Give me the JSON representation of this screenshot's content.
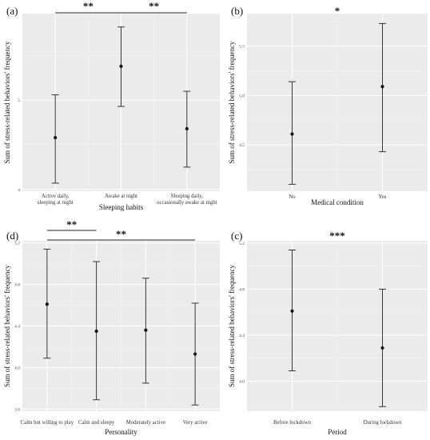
{
  "chart_data": [
    {
      "type": "errorbar",
      "panel_label": "(a)",
      "xlabel": "Sleeping habits",
      "ylabel": "Sum of stress-related behaviors' frequency",
      "categories": [
        "Active daily,\nsleeping at night",
        "Awake at night",
        "Sleeping daily,\noccasionally awake at night"
      ],
      "mean": [
        4.58,
        5.38,
        4.68
      ],
      "lower": [
        4.07,
        4.93,
        4.25
      ],
      "upper": [
        5.06,
        5.82,
        5.1
      ],
      "ylim": [
        3.98,
        5.97
      ],
      "yticks": [
        4,
        5
      ],
      "ytick_labels": [
        "4",
        "5"
      ],
      "show_minor_y": true,
      "significance": [
        {
          "from": 0,
          "to": 1,
          "label": "**"
        },
        {
          "from": 1,
          "to": 2,
          "label": "**"
        }
      ]
    },
    {
      "type": "errorbar",
      "panel_label": "(b)",
      "xlabel": "Medical condition",
      "ylabel": "Sum of stress-related behaviors' frequency",
      "categories": [
        "No",
        "Yes"
      ],
      "mean": [
        4.61,
        5.09
      ],
      "lower": [
        4.1,
        4.43
      ],
      "upper": [
        5.14,
        5.73
      ],
      "ylim": [
        4.03,
        5.83
      ],
      "yticks": [
        4.5,
        5.0,
        5.5
      ],
      "ytick_labels": [
        "4.5",
        "5.0",
        "5.5"
      ],
      "show_minor_y": false,
      "significance": [
        {
          "label": "*"
        }
      ]
    },
    {
      "type": "errorbar",
      "panel_label": "(d)",
      "xlabel": "Personality",
      "ylabel": "Sum of stress-related behaviors' frequency",
      "categories": [
        "Calm but willing to play",
        "Calm and sleepy",
        "Moderately active",
        "Very active"
      ],
      "mean": [
        4.61,
        4.35,
        4.36,
        4.13
      ],
      "lower": [
        4.09,
        3.69,
        3.85,
        3.64
      ],
      "upper": [
        5.14,
        5.02,
        4.86,
        4.62
      ],
      "ylim": [
        3.58,
        5.22
      ],
      "yticks": [
        3.6,
        4.0,
        4.4,
        4.8,
        5.2
      ],
      "ytick_labels": [
        "3.6",
        "4.0",
        "4.4",
        "4.8",
        "5.2"
      ],
      "show_minor_y": false,
      "significance": [
        {
          "from": 0,
          "to": 1,
          "label": "**"
        },
        {
          "from": 0,
          "to": 3,
          "label": "**"
        }
      ]
    },
    {
      "type": "errorbar",
      "panel_label": "(c)",
      "xlabel": "Period",
      "ylabel": "Sum of stress-related behaviors' frequency",
      "categories": [
        "Before lockdown",
        "During lockdown"
      ],
      "mean": [
        4.61,
        4.29
      ],
      "lower": [
        4.09,
        3.78
      ],
      "upper": [
        5.14,
        4.8
      ],
      "ylim": [
        3.74,
        5.22
      ],
      "yticks": [
        4.0,
        4.4,
        4.8,
        5.2
      ],
      "ytick_labels": [
        "4.0",
        "4.4",
        "4.8",
        "5.2"
      ],
      "show_minor_y": false,
      "significance": [
        {
          "label": "***"
        }
      ]
    }
  ]
}
